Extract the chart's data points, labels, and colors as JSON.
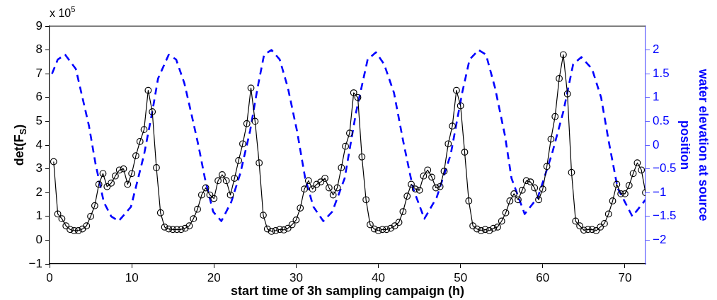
{
  "chart_data": {
    "type": "line",
    "xlabel": "start time of 3h sampling campaign (h)",
    "ylabel": "det(F$_{S}$)",
    "y2label": "water elevation at source position",
    "annotations": [
      "x 10$^{5}$"
    ],
    "xlim": [
      0,
      72.5
    ],
    "xticks": [
      0,
      10,
      20,
      30,
      40,
      50,
      60,
      70
    ],
    "ylim": [
      -1,
      9
    ],
    "yticks": [
      -1,
      0,
      1,
      2,
      3,
      4,
      5,
      6,
      7,
      8,
      9
    ],
    "y2lim": [
      -2.5,
      2.5
    ],
    "y2ticks": [
      -2,
      -1.5,
      -1,
      -0.5,
      0,
      0.5,
      1,
      1.5,
      2
    ],
    "grid": false,
    "legend": false,
    "series": [
      {
        "color": "#000000",
        "marker": "circle",
        "line_style": "solid",
        "x": [
          0.5,
          1,
          1.5,
          2,
          2.5,
          3,
          3.5,
          4,
          4.5,
          5,
          5.5,
          6,
          6.5,
          7,
          7.5,
          8,
          8.5,
          9,
          9.5,
          10,
          10.5,
          11,
          11.5,
          12,
          12.5,
          13,
          13.5,
          14,
          14.5,
          15,
          15.5,
          16,
          16.5,
          17,
          17.5,
          18,
          18.5,
          19,
          19.5,
          20,
          20.5,
          21,
          21.5,
          22,
          22.5,
          23,
          23.5,
          24,
          24.5,
          25,
          25.5,
          26,
          26.5,
          27,
          27.5,
          28,
          28.5,
          29,
          29.5,
          30,
          30.5,
          31,
          31.5,
          32,
          32.5,
          33,
          33.5,
          34,
          34.5,
          35,
          35.5,
          36,
          36.5,
          37,
          37.5,
          38,
          38.5,
          39,
          39.5,
          40,
          40.5,
          41,
          41.5,
          42,
          42.5,
          43,
          43.5,
          44,
          44.5,
          45,
          45.5,
          46,
          46.5,
          47,
          47.5,
          48,
          48.5,
          49,
          49.5,
          50,
          50.5,
          51,
          51.5,
          52,
          52.5,
          53,
          53.5,
          54,
          54.5,
          55,
          55.5,
          56,
          56.5,
          57,
          57.5,
          58,
          58.5,
          59,
          59.5,
          60,
          60.5,
          61,
          61.5,
          62,
          62.5,
          63,
          63.5,
          64,
          64.5,
          65,
          65.5,
          66,
          66.5,
          67,
          67.5,
          68,
          68.5,
          69,
          69.5,
          70,
          70.5,
          71,
          71.5,
          72,
          72.5
        ],
        "values": [
          3.3,
          1.1,
          0.9,
          0.6,
          0.45,
          0.4,
          0.4,
          0.47,
          0.6,
          1.0,
          1.45,
          2.35,
          2.8,
          2.25,
          2.4,
          2.7,
          2.95,
          3.0,
          2.35,
          2.8,
          3.55,
          4.15,
          4.65,
          6.3,
          5.4,
          3.05,
          1.15,
          0.55,
          0.47,
          0.45,
          0.45,
          0.45,
          0.5,
          0.6,
          0.9,
          1.3,
          1.9,
          2.2,
          1.9,
          1.75,
          2.5,
          2.75,
          2.5,
          1.9,
          2.6,
          3.35,
          4.05,
          4.9,
          6.4,
          5.0,
          3.25,
          1.05,
          0.47,
          0.37,
          0.4,
          0.45,
          0.43,
          0.5,
          0.65,
          0.85,
          1.35,
          2.15,
          2.5,
          2.15,
          2.35,
          2.45,
          2.6,
          2.2,
          1.9,
          2.2,
          3.05,
          3.95,
          4.5,
          6.2,
          6.0,
          3.5,
          1.7,
          0.65,
          0.47,
          0.4,
          0.45,
          0.45,
          0.5,
          0.6,
          0.75,
          1.2,
          1.85,
          2.35,
          2.15,
          2.1,
          2.7,
          2.95,
          2.65,
          2.2,
          2.25,
          2.9,
          4.05,
          4.8,
          6.3,
          5.65,
          3.7,
          1.65,
          0.6,
          0.47,
          0.4,
          0.45,
          0.4,
          0.5,
          0.55,
          0.8,
          1.15,
          1.65,
          1.95,
          1.7,
          2.1,
          2.5,
          2.45,
          2.2,
          1.7,
          2.15,
          3.1,
          4.25,
          5.2,
          6.8,
          7.8,
          6.15,
          2.85,
          0.8,
          0.6,
          0.42,
          0.45,
          0.45,
          0.4,
          0.55,
          0.7,
          1.1,
          1.65,
          2.35,
          1.95,
          1.95,
          2.3,
          2.8,
          3.25,
          2.95,
          2.0
        ]
      },
      {
        "color": "#0000ff",
        "axis": "y2",
        "marker": "none",
        "line_style": "dashed",
        "x": [
          0.3,
          1.0,
          1.9,
          3.2,
          4.0,
          4.8,
          5.6,
          6.6,
          7.5,
          8.4,
          9.9,
          11.5,
          12.5,
          13.2,
          14.5,
          15.4,
          16.4,
          17.2,
          18.1,
          18.9,
          19.9,
          20.9,
          22.1,
          23.2,
          24.4,
          25.3,
          26.1,
          27.0,
          28.0,
          29.0,
          30.1,
          31.1,
          32.1,
          33.3,
          34.4,
          35.9,
          37.3,
          38.7,
          39.7,
          40.7,
          41.9,
          43.0,
          44.2,
          45.6,
          47.1,
          48.8,
          50.2,
          51.1,
          52.2,
          53.1,
          54.2,
          55.4,
          56.2,
          57.8,
          59.4,
          61.1,
          62.5,
          63.7,
          64.7,
          66.0,
          67.1,
          68.0,
          69.1,
          70.9,
          72.5
        ],
        "values": [
          1.5,
          1.8,
          1.9,
          1.6,
          1.0,
          0.4,
          -0.4,
          -1.2,
          -1.5,
          -1.6,
          -1.3,
          -0.2,
          0.7,
          1.4,
          1.9,
          1.8,
          1.3,
          0.7,
          0.0,
          -0.7,
          -1.4,
          -1.6,
          -1.2,
          -0.6,
          0.3,
          1.2,
          1.9,
          2.0,
          1.8,
          1.2,
          0.3,
          -0.7,
          -1.3,
          -1.6,
          -1.4,
          -0.7,
          0.7,
          1.8,
          1.95,
          1.7,
          1.1,
          0.1,
          -0.9,
          -1.55,
          -1.1,
          -0.2,
          1.1,
          1.8,
          2.0,
          1.9,
          1.2,
          0.2,
          -0.7,
          -1.45,
          -1.1,
          -0.2,
          0.7,
          1.7,
          1.85,
          1.6,
          1.0,
          0.1,
          -0.9,
          -1.5,
          -1.15
        ]
      }
    ]
  }
}
